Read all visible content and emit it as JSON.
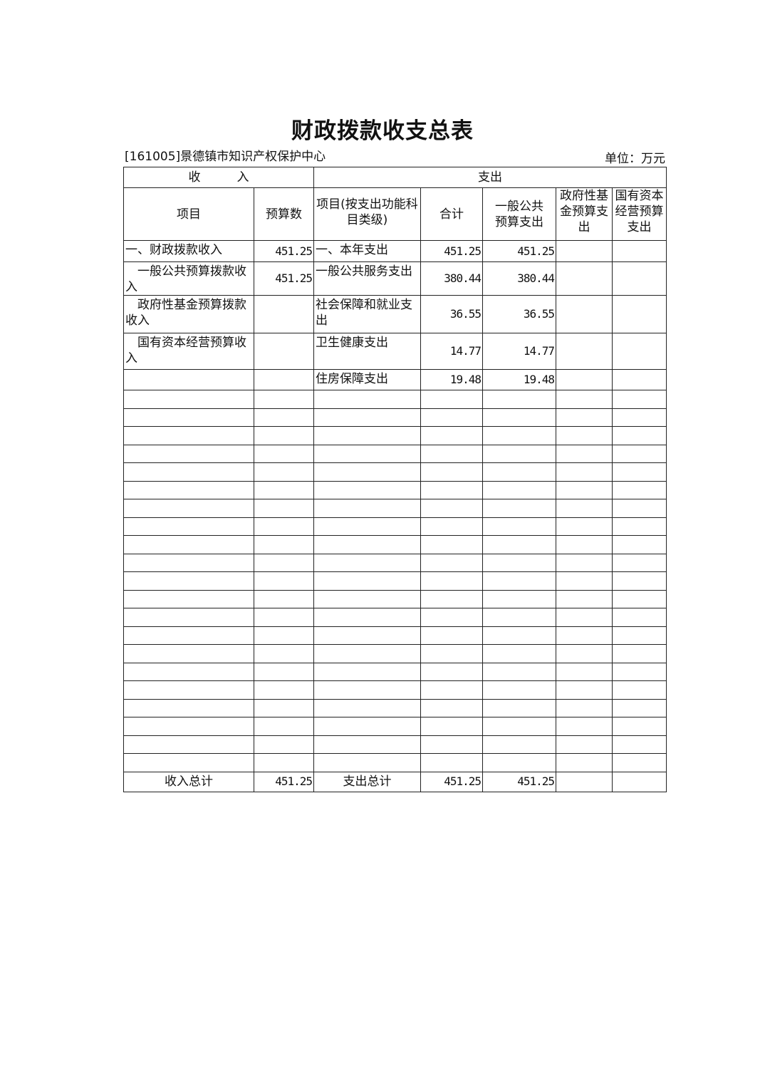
{
  "title": "财政拨款收支总表",
  "org": "[161005]景德镇市知识产权保护中心",
  "unit": "单位：万元",
  "header": {
    "income": "收　　　入",
    "expense": "支出",
    "cols": [
      "项目",
      "预算数",
      "项目(按支出功能科目类级)",
      "合计",
      "一般公共预算支出",
      "政府性基金预算支出",
      "国有资本经营预算支出"
    ]
  },
  "rows": [
    {
      "in_item": "一、财政拨款收入",
      "in_amt": "451.25",
      "ex_item": "一、本年支出",
      "total": "451.25",
      "general": "451.25",
      "fund": "",
      "state": ""
    },
    {
      "in_item": "　一般公共预算拨款收入",
      "in_amt": "451.25",
      "ex_item": "一般公共服务支出",
      "total": "380.44",
      "general": "380.44",
      "fund": "",
      "state": ""
    },
    {
      "in_item": "　政府性基金预算拨款收入",
      "in_amt": "",
      "ex_item": "社会保障和就业支出",
      "total": "36.55",
      "general": "36.55",
      "fund": "",
      "state": ""
    },
    {
      "in_item": "　国有资本经营预算收入",
      "in_amt": "",
      "ex_item": "卫生健康支出",
      "total": "14.77",
      "general": "14.77",
      "fund": "",
      "state": ""
    },
    {
      "in_item": "",
      "in_amt": "",
      "ex_item": "住房保障支出",
      "total": "19.48",
      "general": "19.48",
      "fund": "",
      "state": ""
    }
  ],
  "total_row": {
    "in_label": "收入总计",
    "in_amt": "451.25",
    "ex_label": "支出总计",
    "total": "451.25",
    "general": "451.25",
    "fund": "",
    "state": ""
  }
}
